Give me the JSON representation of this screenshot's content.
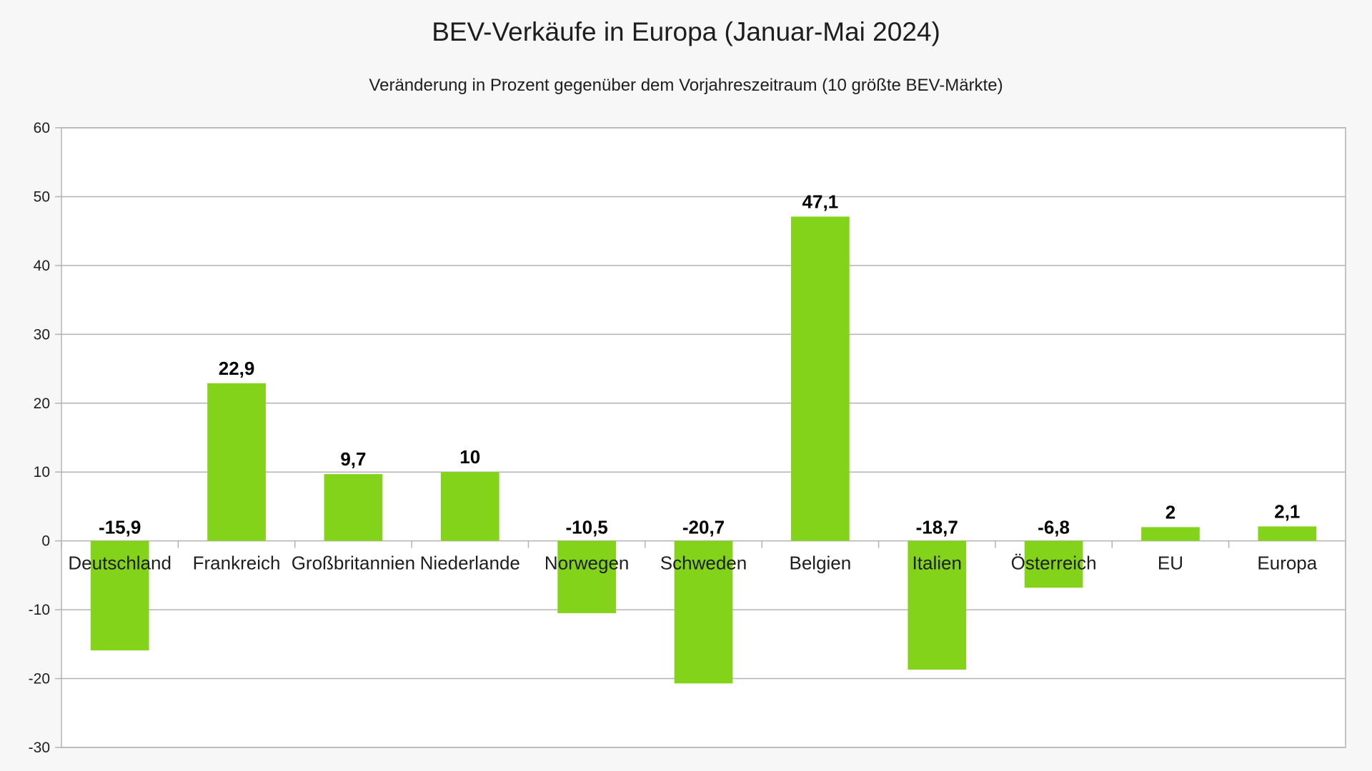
{
  "chart_data": {
    "type": "bar",
    "title": "BEV-Verkäufe in Europa (Januar-Mai 2024)",
    "subtitle": "Veränderung in Prozent gegenüber dem Vorjahreszeitraum (10 größte BEV-Märkte)",
    "categories": [
      "Deutschland",
      "Frankreich",
      "Großbritannien",
      "Niederlande",
      "Norwegen",
      "Schweden",
      "Belgien",
      "Italien",
      "Österreich",
      "EU",
      "Europa"
    ],
    "values": [
      -15.9,
      22.9,
      9.7,
      10,
      -10.5,
      -20.7,
      47.1,
      -18.7,
      -6.8,
      2,
      2.1
    ],
    "value_labels": [
      "-15,9",
      "22,9",
      "9,7",
      "10",
      "-10,5",
      "-20,7",
      "47,1",
      "-18,7",
      "-6,8",
      "2",
      "2,1"
    ],
    "y_ticks": [
      60,
      50,
      40,
      30,
      20,
      10,
      0,
      -10,
      -20,
      -30
    ],
    "y_tick_labels": [
      "60",
      "50",
      "40",
      "30",
      "20",
      "10",
      "0",
      "-10",
      "-20",
      "-30"
    ],
    "ylim": [
      -30,
      60
    ],
    "xlabel": "",
    "ylabel": "",
    "grid": true,
    "legend": "none",
    "bar_color": "#83d31b"
  }
}
